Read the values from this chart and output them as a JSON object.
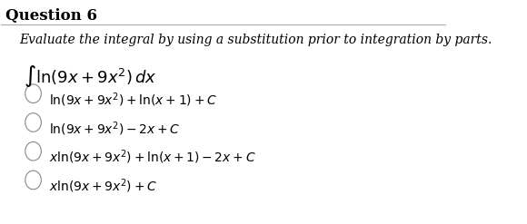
{
  "title": "Question 6",
  "instruction": "Evaluate the integral by using a substitution prior to integration by parts.",
  "integral_text": "$\\int \\ln(9x + 9x^2)\\, dx$",
  "options": [
    "$\\ln(9x + 9x^2) + \\ln(x+1) + C$",
    "$\\ln(9x + 9x^2) - 2x + C$",
    "$x\\ln(9x + 9x^2) + \\ln(x+1) - 2x + C$",
    "$x\\ln(9x + 9x^2) + C$"
  ],
  "bg_color": "#ffffff",
  "text_color": "#000000",
  "title_fontsize": 12,
  "instruction_fontsize": 10,
  "integral_fontsize": 13,
  "option_fontsize": 10,
  "line_color": "#aaaaaa",
  "circle_edge_color": "#888888"
}
